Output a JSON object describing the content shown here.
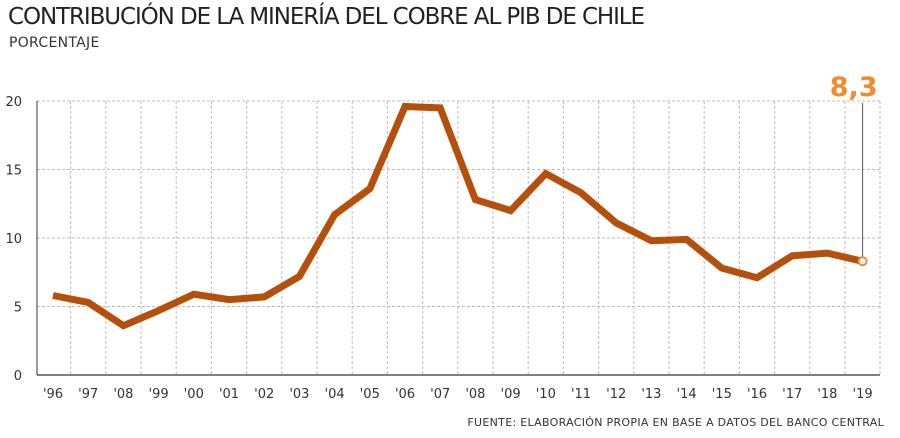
{
  "header": {
    "title": "CONTRIBUCIÓN DE LA MINERÍA DEL COBRE AL PIB DE CHILE",
    "subtitle": "PORCENTAJE"
  },
  "footer": {
    "source": "FUENTE: ELABORACIÓN PROPIA EN BASE A DATOS DEL BANCO CENTRAL"
  },
  "colors": {
    "line": "#b5500c",
    "highlight": "#f28a2e",
    "grid": "#bdbdbd",
    "axis": "#333333"
  },
  "chart_data": {
    "type": "line",
    "title": "CONTRIBUCIÓN DE LA MINERÍA DEL COBRE AL PIB DE CHILE",
    "subtitle": "PORCENTAJE",
    "xlabel": "",
    "ylabel": "",
    "categories": [
      "'96",
      "'97",
      "'08",
      "'99",
      "'00",
      "'01",
      "'02",
      "'03",
      "'04",
      "'05",
      "'06",
      "'07",
      "'08",
      "'09",
      "'10",
      "'11",
      "'12",
      "'13",
      "'14",
      "'15",
      "'16",
      "'17",
      "'18",
      "'19"
    ],
    "series": [
      {
        "values": [
          5.8,
          5.3,
          3.6,
          4.7,
          5.9,
          5.5,
          5.7,
          7.2,
          11.7,
          13.6,
          19.6,
          19.5,
          12.8,
          12.0,
          14.7,
          13.3,
          11.1,
          9.8,
          9.9,
          7.8,
          7.1,
          8.7,
          8.9,
          8.3
        ]
      }
    ],
    "ylim": [
      0,
      20
    ],
    "yticks": [
      0,
      5,
      10,
      15,
      20
    ],
    "grid": true,
    "annotation": {
      "label": "8,3",
      "category": "'19",
      "value": 8.3
    }
  }
}
